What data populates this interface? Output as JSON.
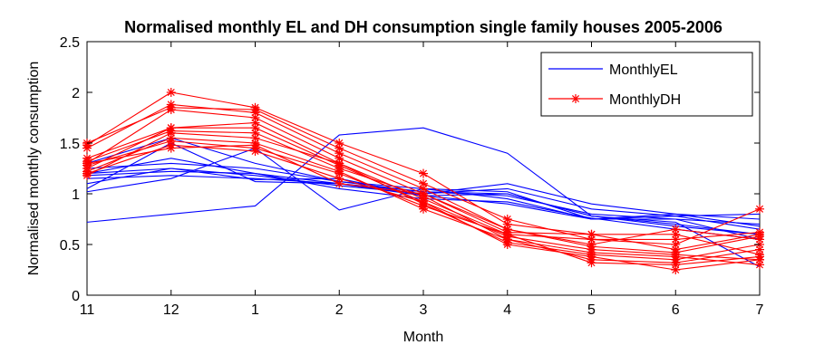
{
  "chart_data": {
    "type": "line",
    "title": "Normalised monthly EL and DH consumption single family houses 2005-2006",
    "xlabel": "Month",
    "ylabel": "Normalised monthly consumption",
    "categories": [
      "11",
      "12",
      "1",
      "2",
      "3",
      "4",
      "5",
      "6",
      "7"
    ],
    "ylim": [
      0,
      2.5
    ],
    "yticks": [
      "0",
      "0.5",
      "1",
      "1.5",
      "2",
      "2.5"
    ],
    "grid": false,
    "legend_position": "top-right",
    "series": [
      {
        "name": "MonthlyEL",
        "color": "#0000ff",
        "marker": "none",
        "lines": [
          [
            0.72,
            0.8,
            0.88,
            1.58,
            1.65,
            1.4,
            0.78,
            0.68,
            0.6
          ],
          [
            1.02,
            1.15,
            1.45,
            0.84,
            1.05,
            1.02,
            0.75,
            0.75,
            0.55
          ],
          [
            1.05,
            1.5,
            1.12,
            1.1,
            1.0,
            1.1,
            0.9,
            0.8,
            0.68
          ],
          [
            1.2,
            1.25,
            1.18,
            1.08,
            1.0,
            1.05,
            0.85,
            0.78,
            0.8
          ],
          [
            1.18,
            1.22,
            1.2,
            1.1,
            1.02,
            0.98,
            0.8,
            0.75,
            0.7
          ],
          [
            1.15,
            1.18,
            1.15,
            1.1,
            0.98,
            1.0,
            0.78,
            0.7,
            0.6
          ],
          [
            1.25,
            1.3,
            1.25,
            1.12,
            1.05,
            0.95,
            0.75,
            0.8,
            0.75
          ],
          [
            1.1,
            1.25,
            1.14,
            1.15,
            0.98,
            0.9,
            0.75,
            0.78,
            0.65
          ],
          [
            1.3,
            1.55,
            1.3,
            1.12,
            1.02,
            1.0,
            0.78,
            0.72,
            0.28
          ],
          [
            1.2,
            1.35,
            1.2,
            1.05,
            0.95,
            0.92,
            0.76,
            0.65,
            0.55
          ]
        ]
      },
      {
        "name": "MonthlyDH",
        "color": "#ff0000",
        "marker": "asterisk",
        "lines": [
          [
            1.48,
            2.0,
            1.85,
            1.5,
            1.2,
            0.7,
            0.6,
            0.6,
            0.4
          ],
          [
            1.5,
            1.85,
            1.83,
            1.45,
            1.1,
            0.75,
            0.55,
            0.5,
            0.85
          ],
          [
            1.45,
            1.88,
            1.8,
            1.4,
            1.05,
            0.65,
            0.5,
            0.65,
            0.55
          ],
          [
            1.3,
            1.83,
            1.75,
            1.35,
            1.0,
            0.62,
            0.6,
            0.45,
            0.6
          ],
          [
            1.35,
            1.65,
            1.7,
            1.3,
            0.95,
            0.6,
            0.55,
            0.55,
            0.62
          ],
          [
            1.25,
            1.65,
            1.65,
            1.28,
            0.92,
            0.58,
            0.45,
            0.4,
            0.35
          ],
          [
            1.32,
            1.62,
            1.6,
            1.25,
            0.98,
            0.55,
            0.42,
            0.38,
            0.3
          ],
          [
            1.18,
            1.6,
            1.55,
            1.3,
            0.9,
            0.52,
            0.4,
            0.35,
            0.5
          ],
          [
            1.22,
            1.55,
            1.5,
            1.22,
            0.85,
            0.55,
            0.35,
            0.32,
            0.45
          ],
          [
            1.28,
            1.52,
            1.45,
            1.2,
            0.88,
            0.6,
            0.32,
            0.3,
            0.38
          ],
          [
            1.2,
            1.48,
            1.42,
            1.15,
            0.92,
            0.5,
            0.38,
            0.25,
            0.35
          ],
          [
            1.3,
            1.45,
            1.48,
            1.1,
            1.0,
            0.65,
            0.48,
            0.42,
            0.58
          ]
        ]
      }
    ]
  }
}
